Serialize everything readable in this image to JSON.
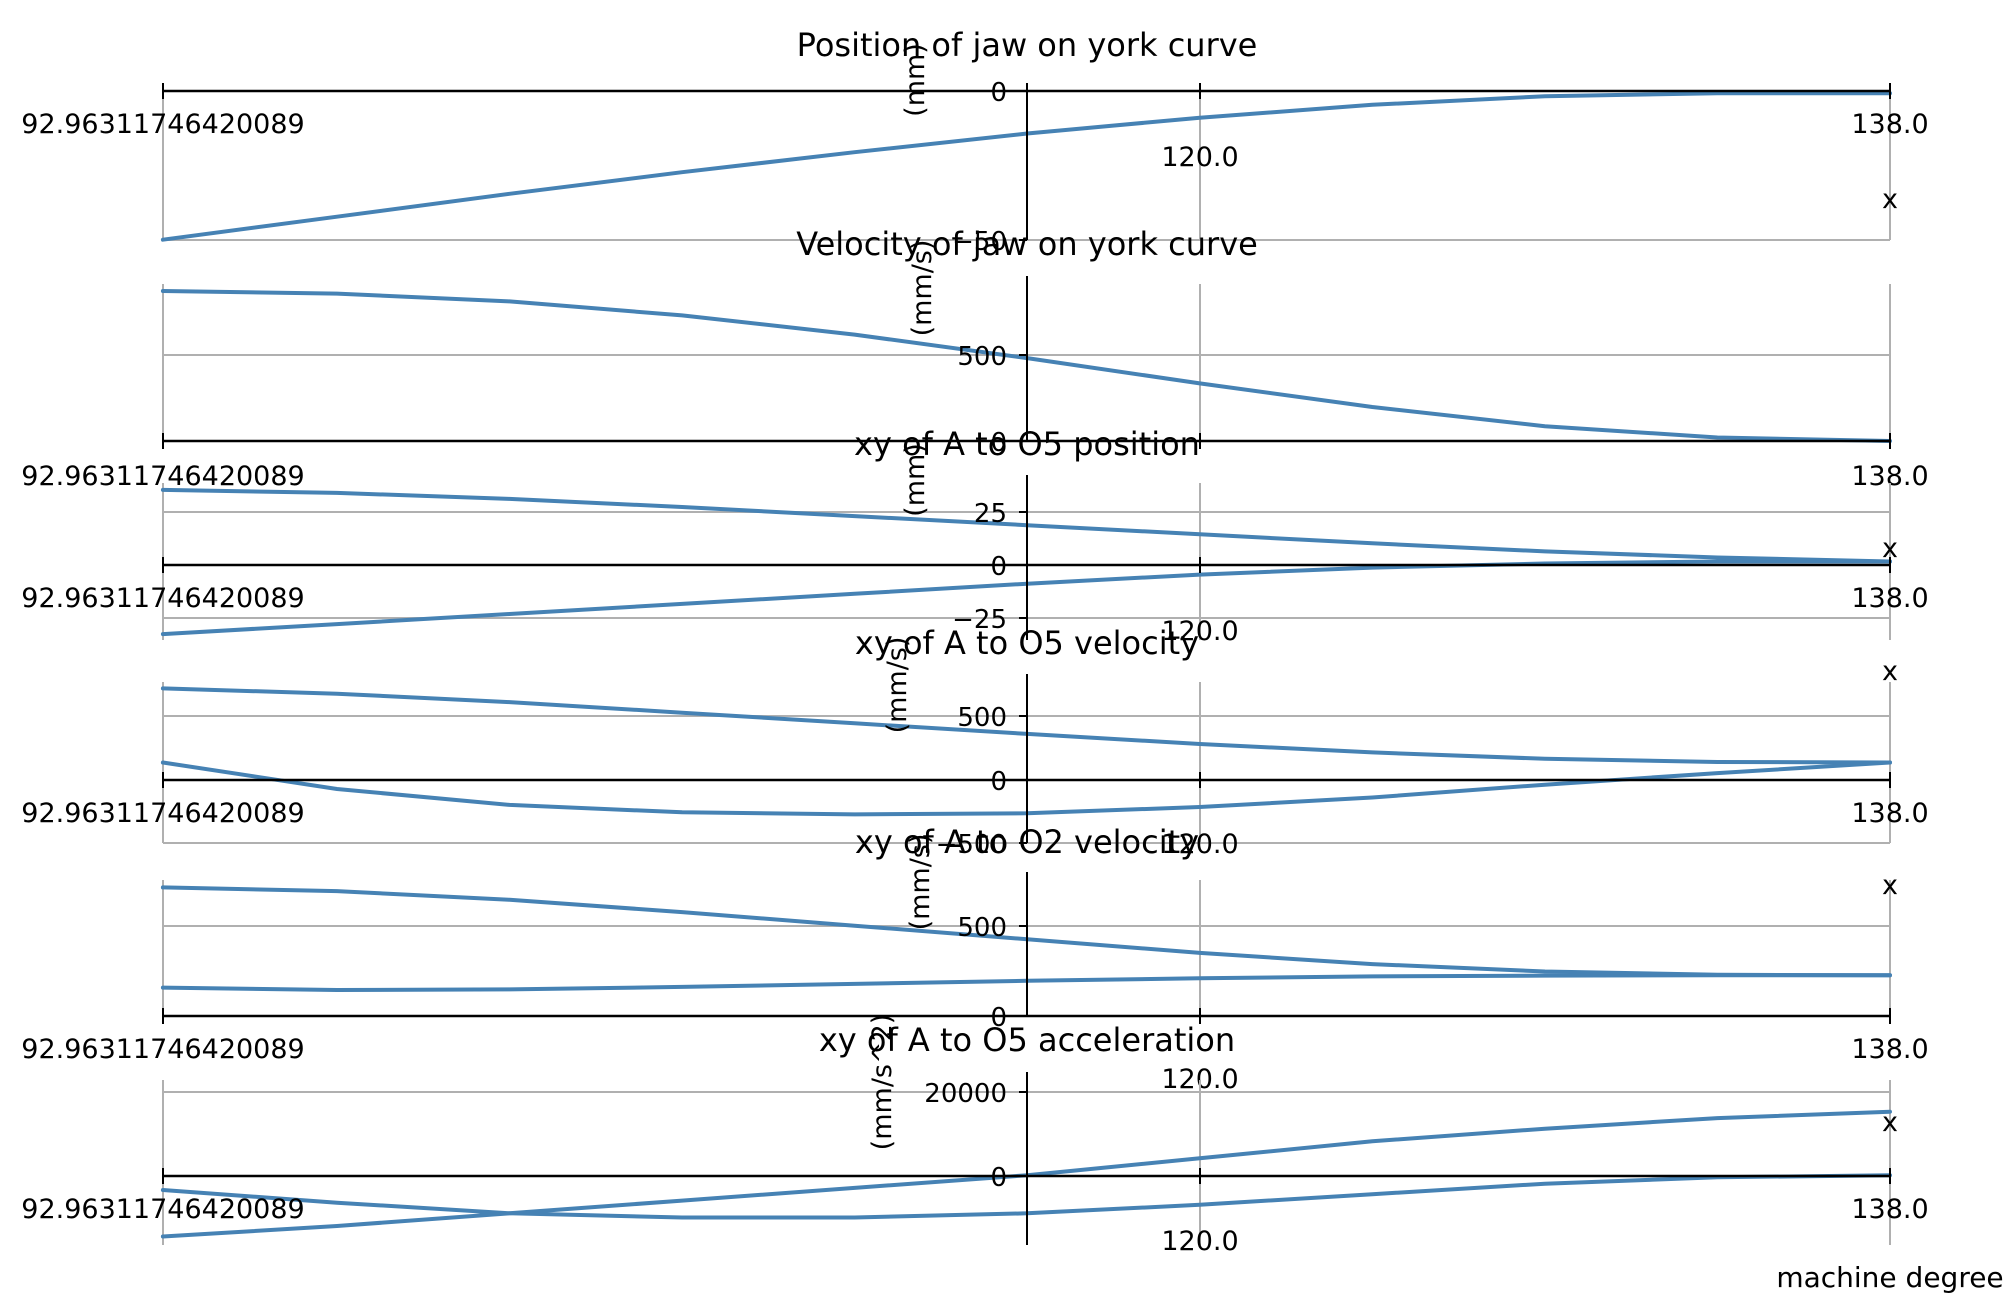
{
  "figure": {
    "x_axis_label": "machine degree",
    "line_color": "#4682b4",
    "grid_color": "#b0b0b0"
  },
  "chart_data": [
    {
      "type": "line",
      "title": "Position of jaw on york curve",
      "ylabel": "(mm)",
      "xlabel": "",
      "x_label_text": "x",
      "x_tick_labels": [
        "92.96311746420089",
        "138.0",
        "120.0"
      ],
      "y_tick_labels": [
        "0",
        "−50"
      ],
      "xlim": [
        92.96311746420089,
        138.0
      ],
      "ylim": [
        -51.1,
        0.8
      ],
      "grid": true,
      "series": [
        {
          "x": [
            92.96,
            97.5,
            102,
            106.5,
            111,
            115.5,
            120,
            124.5,
            129,
            133.5,
            138
          ],
          "values": [
            -51.0,
            -43.0,
            -35.0,
            -27.5,
            -20.5,
            -14.0,
            -8.5,
            -4.0,
            -1.0,
            0,
            0
          ]
        }
      ]
    },
    {
      "type": "line",
      "title": "Velocity of jaw on york curve",
      "ylabel": "(mm/s)",
      "xlabel": "",
      "x_label_text": "",
      "x_tick_labels": [
        "92.96311746420089",
        "138.0"
      ],
      "y_tick_labels": [
        "500",
        "0"
      ],
      "xlim": [
        92.96311746420089,
        138.0
      ],
      "ylim": [
        0,
        900
      ],
      "grid": true,
      "series": [
        {
          "x": [
            92.96,
            97.5,
            102,
            106.5,
            111,
            115.5,
            120,
            124.5,
            129,
            133.5,
            138
          ],
          "values": [
            860,
            845,
            800,
            720,
            610,
            475,
            330,
            195,
            85,
            20,
            0
          ]
        }
      ]
    },
    {
      "type": "line",
      "title": "xy of A to O5 position",
      "ylabel": "(mm)",
      "xlabel": "",
      "x_label_text": "x",
      "x_tick_labels": [
        "92.96311746420089",
        "138.0",
        "120.0"
      ],
      "y_tick_labels": [
        "25",
        "0",
        "−25"
      ],
      "xlim": [
        92.96311746420089,
        138.0
      ],
      "ylim": [
        -38.9,
        38.9
      ],
      "grid": true,
      "series": [
        {
          "name": "",
          "x": [
            92.96,
            97.5,
            102,
            106.5,
            111,
            115.5,
            120,
            124.5,
            129,
            133.5,
            138
          ],
          "values": [
            35.5,
            34,
            31,
            27,
            22.5,
            18,
            13.5,
            9,
            5,
            2,
            0
          ]
        },
        {
          "name": "",
          "x": [
            92.96,
            97.5,
            102,
            106.5,
            111,
            115.5,
            120,
            124.5,
            129,
            133.5,
            138
          ],
          "values": [
            -36,
            -31,
            -26,
            -21,
            -16,
            -11,
            -6.5,
            -3,
            -1,
            0,
            0
          ]
        }
      ]
    },
    {
      "type": "line",
      "title": "xy of A to O5 velocity",
      "ylabel": "(mm/s)",
      "xlabel": "",
      "x_label_text": "x",
      "x_tick_labels": [
        "92.96311746420089",
        "138.0",
        "120.0"
      ],
      "y_tick_labels": [
        "500",
        "0",
        "−500"
      ],
      "xlim": [
        92.96311746420089,
        138.0
      ],
      "ylim": [
        -760,
        760
      ],
      "grid": true,
      "series": [
        {
          "name": "",
          "x": [
            92.96,
            97.5,
            102,
            106.5,
            111,
            115.5,
            120,
            124.5,
            129,
            133.5,
            138
          ],
          "values": [
            700,
            650,
            570,
            470,
            370,
            270,
            175,
            95,
            35,
            5,
            0
          ]
        },
        {
          "name": "",
          "x": [
            92.96,
            97.5,
            102,
            106.5,
            111,
            115.5,
            120,
            124.5,
            129,
            133.5,
            138
          ],
          "values": [
            0,
            -250,
            -400,
            -470,
            -490,
            -480,
            -420,
            -330,
            -210,
            -100,
            0
          ]
        }
      ]
    },
    {
      "type": "line",
      "title": "xy of A to O2 velocity",
      "ylabel": "(mm/s)",
      "xlabel": "",
      "x_label_text": "x",
      "x_tick_labels": [
        "92.96311746420089",
        "138.0",
        "120.0"
      ],
      "y_tick_labels": [
        "500",
        "0"
      ],
      "xlim": [
        92.96311746420089,
        138.0
      ],
      "ylim": [
        -330,
        770
      ],
      "grid": true,
      "series": [
        {
          "name": "",
          "x": [
            92.96,
            97.5,
            102,
            106.5,
            111,
            115.5,
            120,
            124.5,
            129,
            133.5,
            138
          ],
          "values": [
            710,
            680,
            610,
            510,
            400,
            290,
            180,
            90,
            30,
            3,
            0
          ]
        },
        {
          "name": "",
          "x": [
            92.96,
            97.5,
            102,
            106.5,
            111,
            115.5,
            120,
            124.5,
            129,
            133.5,
            138
          ],
          "values": [
            -100,
            -120,
            -115,
            -95,
            -70,
            -45,
            -25,
            -10,
            -3,
            0,
            0
          ]
        }
      ]
    },
    {
      "type": "line",
      "title": "xy of A to O5 acceleration",
      "ylabel": "(mm/s^2)",
      "xlabel": "",
      "x_label_text": "x",
      "x_tick_labels": [
        "92.96311746420089",
        "138.0",
        "120.0"
      ],
      "y_tick_labels": [
        "20000",
        "0"
      ],
      "xlim": [
        92.96311746420089,
        138.0
      ],
      "ylim": [
        -16500,
        22500
      ],
      "grid": true,
      "series": [
        {
          "name": "",
          "x": [
            92.96,
            97.5,
            102,
            106.5,
            111,
            115.5,
            120,
            124.5,
            129,
            133.5,
            138
          ],
          "values": [
            -14500,
            -12000,
            -9000,
            -6000,
            -3000,
            0,
            4000,
            8000,
            11000,
            13500,
            15000
          ]
        },
        {
          "name": "",
          "x": [
            92.96,
            97.5,
            102,
            106.5,
            111,
            115.5,
            120,
            124.5,
            129,
            133.5,
            138
          ],
          "values": [
            -3500,
            -6500,
            -9000,
            -10000,
            -10000,
            -9000,
            -7000,
            -4500,
            -2000,
            -500,
            0
          ]
        }
      ]
    }
  ]
}
